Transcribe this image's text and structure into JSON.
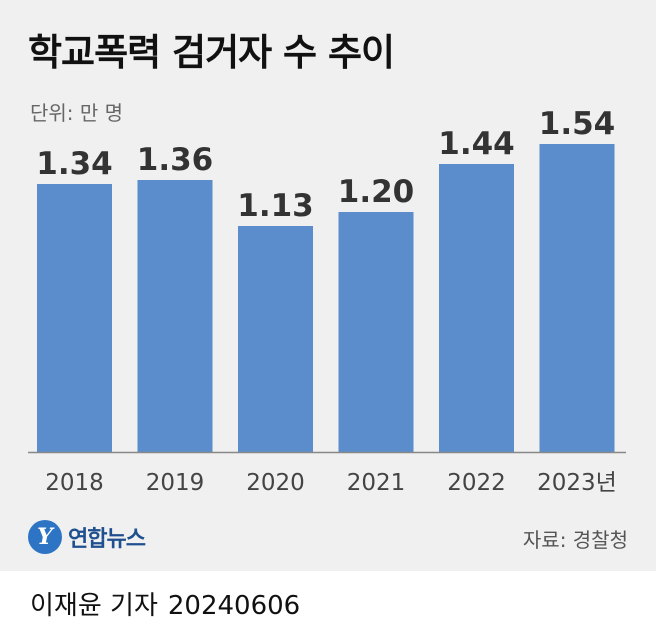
{
  "chart_data": {
    "type": "bar",
    "title": "학교폭력 검거자 수 추이",
    "unit_label": "단위: 만 명",
    "categories": [
      "2018",
      "2019",
      "2020",
      "2021",
      "2022",
      "2023년"
    ],
    "values": [
      1.34,
      1.36,
      1.13,
      1.2,
      1.44,
      1.54
    ],
    "data_labels": [
      "1.34",
      "1.36",
      "1.13",
      "1.20",
      "1.44",
      "1.54"
    ],
    "ylim": [
      0,
      1.6
    ],
    "grid": false,
    "bar_color": "#5b8dcc",
    "label_color": "#333333"
  },
  "logo": {
    "name": "연합뉴스",
    "mark": "Y"
  },
  "source": "자료: 경찰청",
  "credit": {
    "author": "이재윤 기자",
    "date": "20240606"
  }
}
